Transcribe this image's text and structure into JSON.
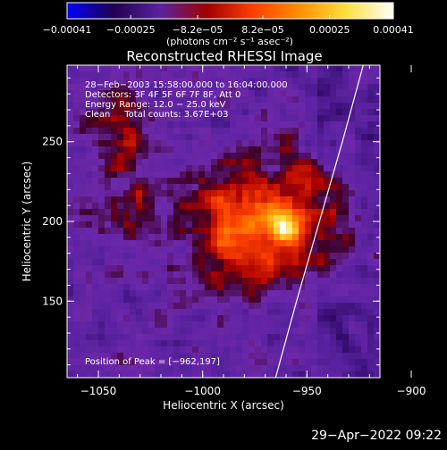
{
  "chart_data": {
    "type": "heatmap",
    "title": "Reconstructed RHESSI Image",
    "xlabel": "Heliocentric X (arcsec)",
    "ylabel": "Heliocentric Y (arcsec)",
    "xlim": [
      -1065,
      -915
    ],
    "ylim": [
      102,
      298
    ],
    "x_ticks": [
      {
        "value": -1050,
        "label": "−1050"
      },
      {
        "value": -1000,
        "label": "−1000"
      },
      {
        "value": -950,
        "label": "−950"
      },
      {
        "value": -900,
        "label": "−900"
      }
    ],
    "y_ticks": [
      {
        "value": 150,
        "label": "150"
      },
      {
        "value": 200,
        "label": "200"
      },
      {
        "value": 250,
        "label": "250"
      }
    ],
    "colorbar": {
      "min": -0.00041,
      "max": 0.00041,
      "ticks": [
        {
          "value": -0.00041,
          "label": "−0.00041"
        },
        {
          "value": -0.00025,
          "label": "−0.00025"
        },
        {
          "value": -8.2e-05,
          "label": "−8.2e−05"
        },
        {
          "value": 8.2e-05,
          "label": "8.2e−05"
        },
        {
          "value": 0.00025,
          "label": "0.00025"
        },
        {
          "value": 0.00041,
          "label": "0.00041"
        }
      ],
      "units_label": "(photons cm⁻² s⁻¹ asec⁻²)",
      "colors": [
        "#0000ff",
        "#200050",
        "#5a22a0",
        "#a00000",
        "#ff4000",
        "#ff9000",
        "#ffe040",
        "#ffffff"
      ]
    },
    "annotations": [
      "28−Feb−2003 15:58:00.000 to 16:04:00.000",
      "Detectors: 3F 4F 5F 6F 7F 8F, Att 0",
      "Energy Range: 12.0 − 25.0 keV",
      "Clean     Total counts: 3.67E+03"
    ],
    "peak_label": "Position of Peak = [−962,197]",
    "peak": {
      "x": -962,
      "y": 197
    },
    "limb_curve": [
      [
        -965,
        102
      ],
      [
        -955,
        150
      ],
      [
        -944,
        200
      ],
      [
        -933,
        250
      ],
      [
        -923,
        298
      ]
    ]
  },
  "footer": {
    "timestamp": "29−Apr−2022 09:22"
  }
}
